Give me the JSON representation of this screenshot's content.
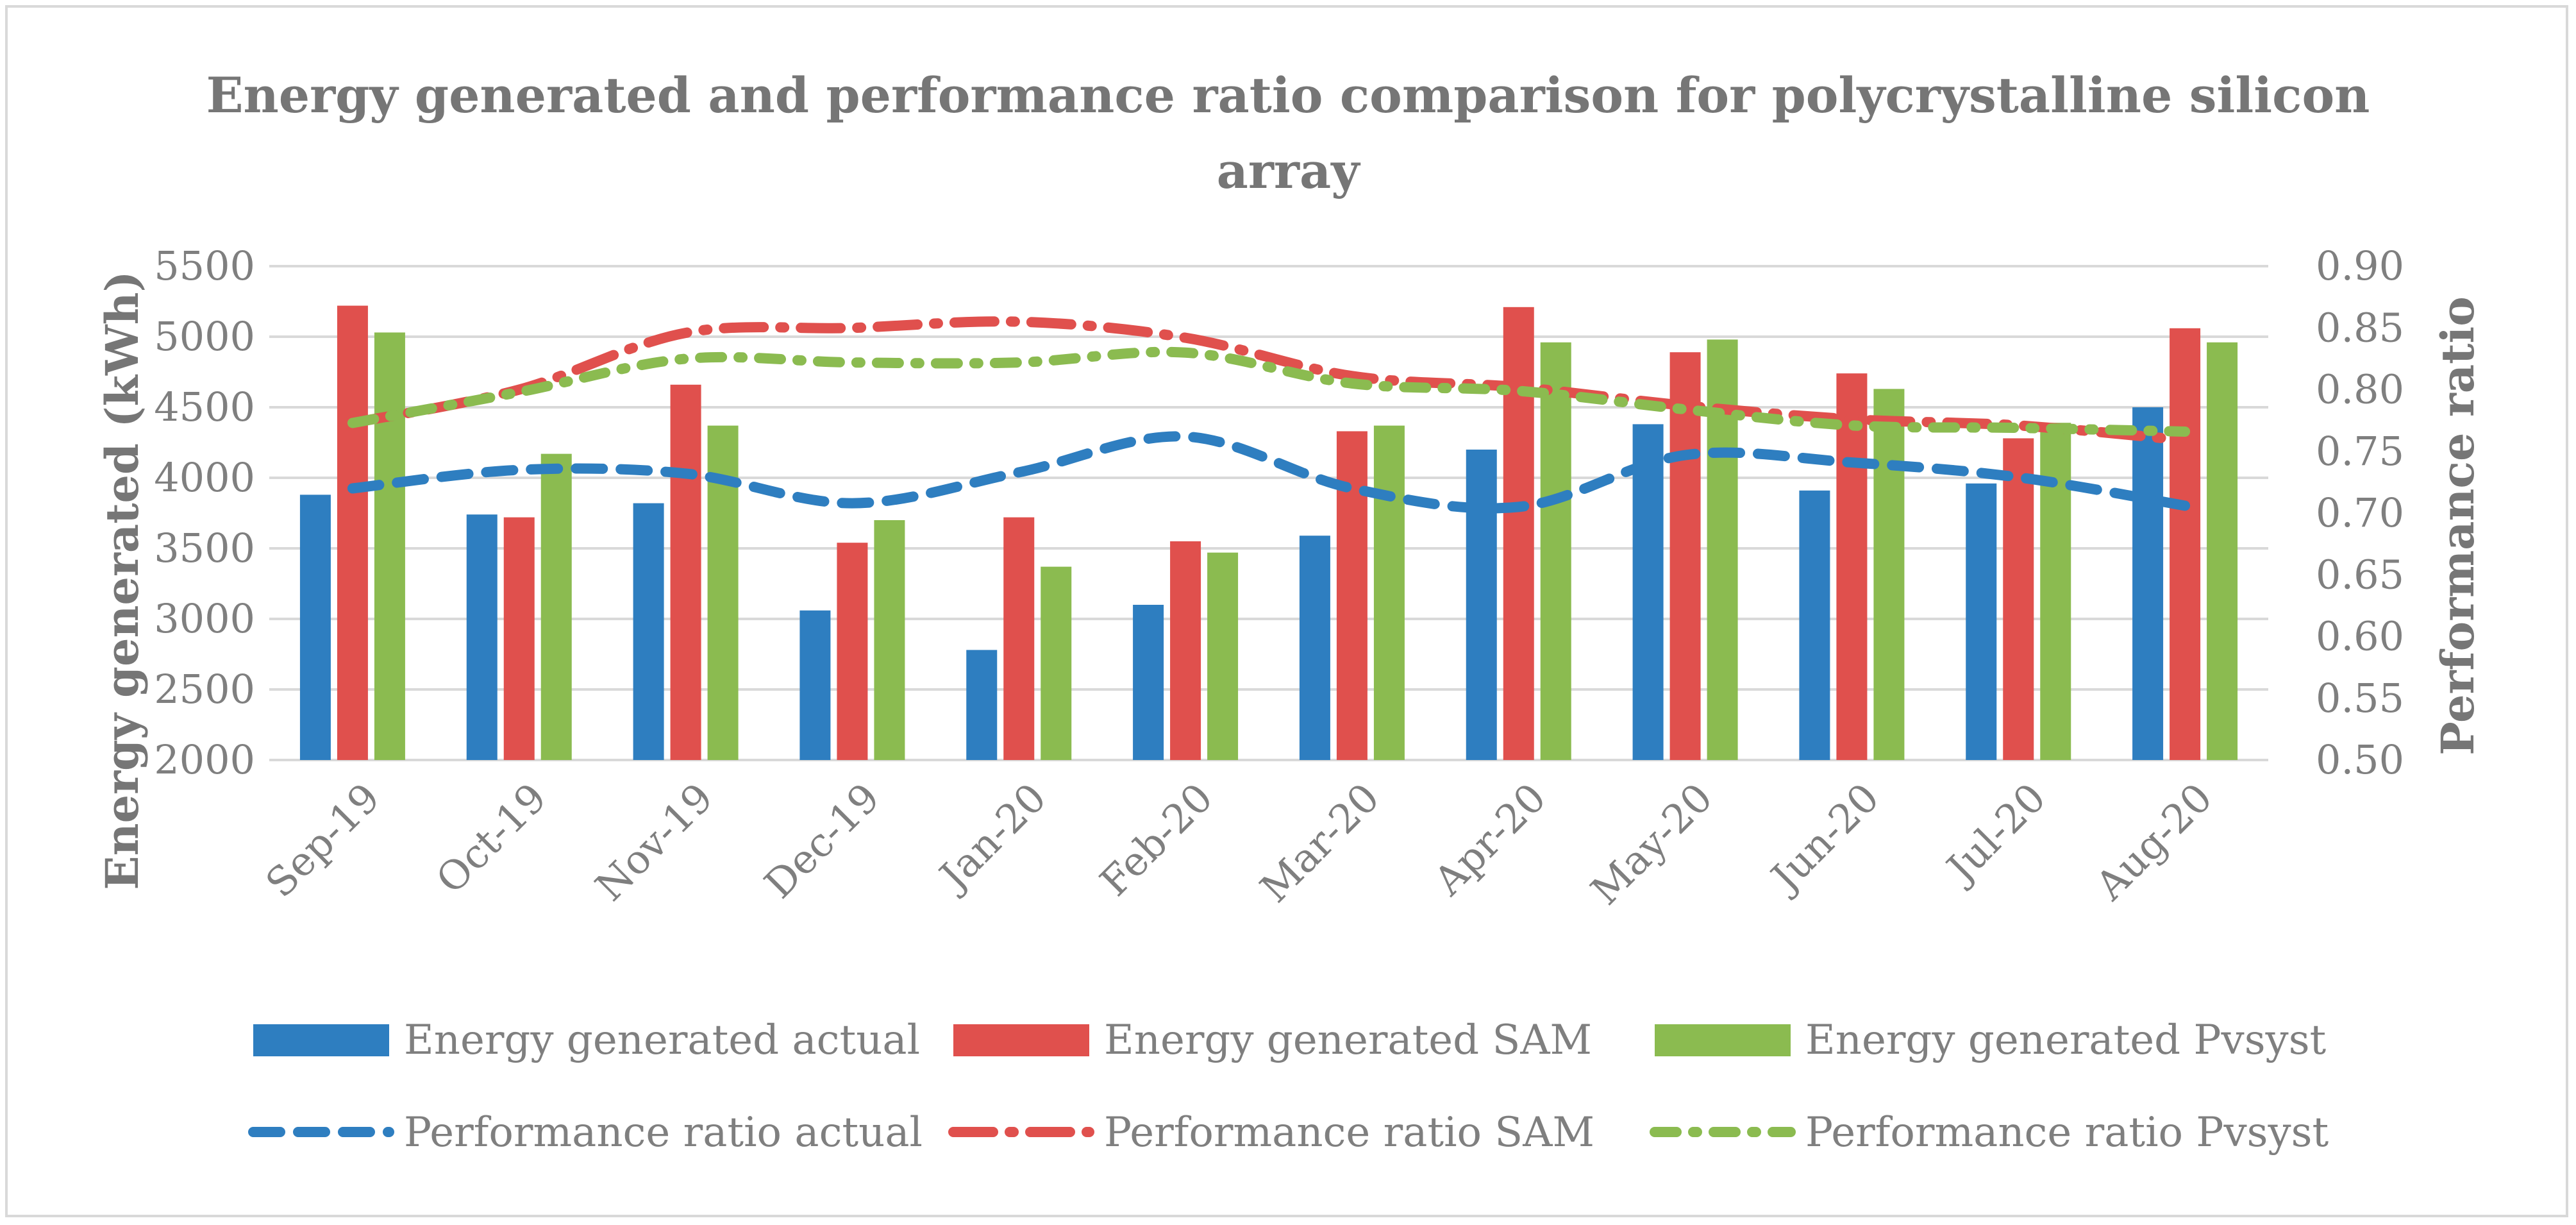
{
  "chart_data": {
    "type": "bar",
    "title": "Energy generated and performance ratio comparison for polycrystalline silicon array",
    "title_lines": [
      "Energy generated and performance ratio comparison for polycrystalline silicon",
      "array"
    ],
    "categories": [
      "Sep-19",
      "Oct-19",
      "Nov-19",
      "Dec-19",
      "Jan-20",
      "Feb-20",
      "Mar-20",
      "Apr-20",
      "May-20",
      "Jun-20",
      "Jul-20",
      "Aug-20"
    ],
    "ylabel": "Energy generated (kWh)",
    "y2label": "Performance ratio",
    "ylim": [
      2000,
      5500
    ],
    "y2lim": [
      0.5,
      0.9
    ],
    "yticks": [
      "2000",
      "2500",
      "3000",
      "3500",
      "4000",
      "4500",
      "5000",
      "5500"
    ],
    "y2ticks": [
      "0.50",
      "0.55",
      "0.60",
      "0.65",
      "0.70",
      "0.75",
      "0.80",
      "0.85",
      "0.90"
    ],
    "grid": true,
    "legend_position": "bottom",
    "bar_series": [
      {
        "name": "Energy generated actual",
        "color": "#2e7ec0",
        "values": [
          3880,
          3740,
          3820,
          3060,
          2780,
          3100,
          3590,
          4200,
          4380,
          3910,
          3960,
          4500
        ]
      },
      {
        "name": "Energy generated SAM",
        "color": "#e0504d",
        "values": [
          5220,
          3720,
          4660,
          3540,
          3720,
          3550,
          4330,
          5210,
          4890,
          4740,
          4280,
          5060
        ]
      },
      {
        "name": "Energy generated Pvsyst",
        "color": "#8bbb50",
        "values": [
          5030,
          4170,
          4370,
          3700,
          3370,
          3470,
          4370,
          4960,
          4980,
          4630,
          4390,
          4960
        ]
      }
    ],
    "line_series": [
      {
        "name": "Performance ratio actual",
        "color": "#2e7ec0",
        "style": "dash",
        "axis": "secondary",
        "values": [
          0.72,
          0.735,
          0.732,
          0.708,
          0.733,
          0.762,
          0.72,
          0.705,
          0.747,
          0.741,
          0.729,
          0.706
        ]
      },
      {
        "name": "Performance ratio SAM",
        "color": "#e0504d",
        "style": "long-dash-dot",
        "axis": "secondary",
        "values": [
          0.773,
          0.8,
          0.846,
          0.85,
          0.855,
          0.842,
          0.811,
          0.802,
          0.787,
          0.776,
          0.771,
          0.759
        ]
      },
      {
        "name": "Performance ratio Pvsyst",
        "color": "#8bbb50",
        "style": "dash-dot",
        "axis": "secondary",
        "values": [
          0.773,
          0.798,
          0.825,
          0.822,
          0.822,
          0.83,
          0.805,
          0.799,
          0.784,
          0.771,
          0.769,
          0.766
        ]
      }
    ]
  }
}
